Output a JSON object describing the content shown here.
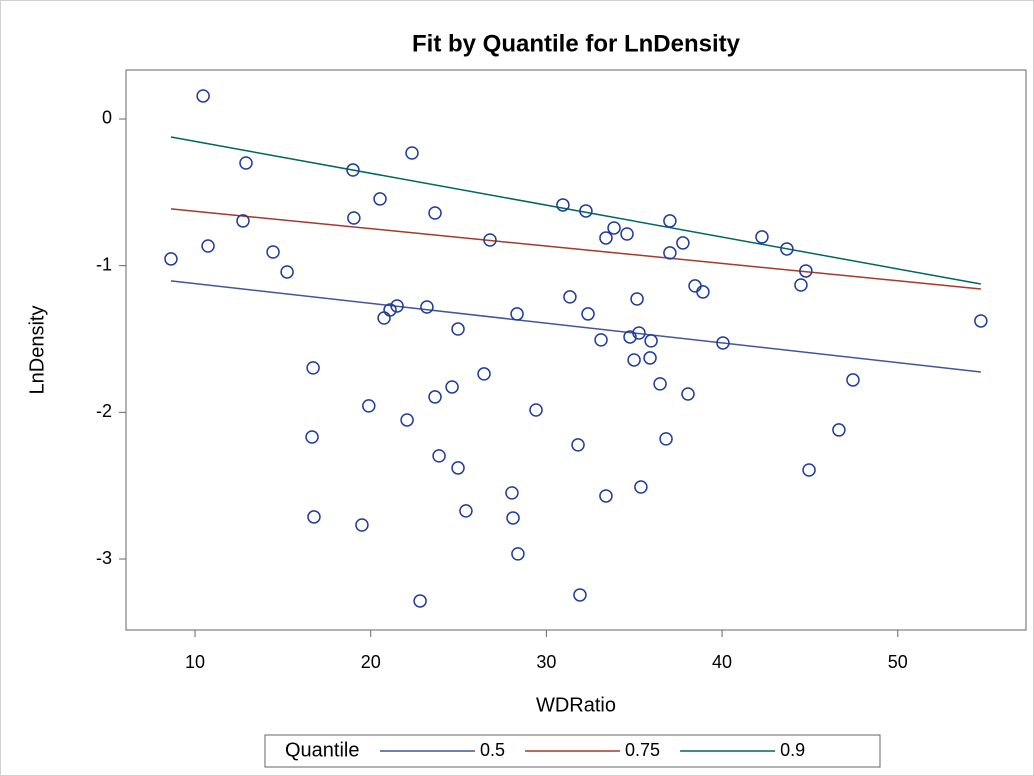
{
  "chart_data": {
    "type": "scatter",
    "title": "Fit by Quantile for LnDensity",
    "x_label": "WDRatio",
    "y_label": "LnDensity",
    "marker_color": "#1f3c99",
    "x": [
      8.63,
      10.46,
      10.74,
      12.9,
      12.73,
      14.44,
      15.24,
      16.72,
      16.66,
      16.77,
      18.99,
      19.04,
      19.5,
      19.89,
      20.53,
      22.07,
      20.76,
      21.1,
      21.5,
      22.35,
      23.2,
      23.66,
      23.66,
      23.89,
      24.63,
      24.97,
      24.97,
      25.42,
      26.45,
      26.79,
      28.04,
      28.1,
      28.33,
      28.38,
      29.41,
      22.81,
      31.91,
      30.94,
      31.34,
      31.8,
      32.25,
      32.37,
      33.11,
      33.39,
      33.39,
      33.85,
      34.59,
      34.76,
      34.99,
      35.16,
      35.27,
      35.38,
      35.9,
      35.96,
      36.47,
      36.81,
      37.03,
      37.03,
      37.77,
      38.06,
      38.46,
      38.91,
      40.05,
      42.27,
      43.69,
      44.49,
      44.77,
      44.95,
      46.65,
      47.45,
      54.73
    ],
    "values": [
      -0.954,
      0.157,
      -0.866,
      -0.3,
      -0.695,
      -0.907,
      -1.043,
      -1.697,
      -2.168,
      -2.713,
      -0.348,
      -0.675,
      -2.768,
      -1.956,
      -0.545,
      -2.052,
      -1.357,
      -1.302,
      -1.275,
      -0.232,
      -1.282,
      -0.641,
      -1.895,
      -2.297,
      -1.827,
      -2.379,
      -1.432,
      -2.672,
      -1.738,
      -0.825,
      -2.549,
      -2.72,
      -1.329,
      -2.965,
      -1.984,
      -3.286,
      -3.245,
      -0.586,
      -1.213,
      -2.222,
      -0.627,
      -1.329,
      -1.506,
      -0.811,
      -2.57,
      -0.743,
      -0.784,
      -1.486,
      -1.643,
      -1.227,
      -1.459,
      -2.509,
      -1.629,
      -1.513,
      -1.806,
      -2.181,
      -0.695,
      -0.913,
      -0.845,
      -1.875,
      -1.138,
      -1.179,
      -1.527,
      -0.804,
      -0.886,
      -1.132,
      -1.036,
      -2.393,
      -2.12,
      -1.779,
      -1.377
    ],
    "series": [
      {
        "name": "0.5",
        "color": "#445694",
        "x": [
          8.63,
          54.73
        ],
        "values": [
          -1.104,
          -1.725
        ]
      },
      {
        "name": "0.75",
        "color": "#a23a2e",
        "x": [
          8.63,
          54.73
        ],
        "values": [
          -0.613,
          -1.159
        ]
      },
      {
        "name": "0.9",
        "color": "#01665e",
        "x": [
          8.63,
          54.73
        ],
        "values": [
          -0.123,
          -1.125
        ]
      }
    ],
    "legend_title": "Quantile",
    "xlim": [
      6.07,
      57.3
    ],
    "ylim": [
      -3.484,
      0.334
    ],
    "xticks": [
      10,
      20,
      30,
      40,
      50
    ],
    "yticks": [
      0,
      -1,
      -2,
      -3
    ]
  }
}
